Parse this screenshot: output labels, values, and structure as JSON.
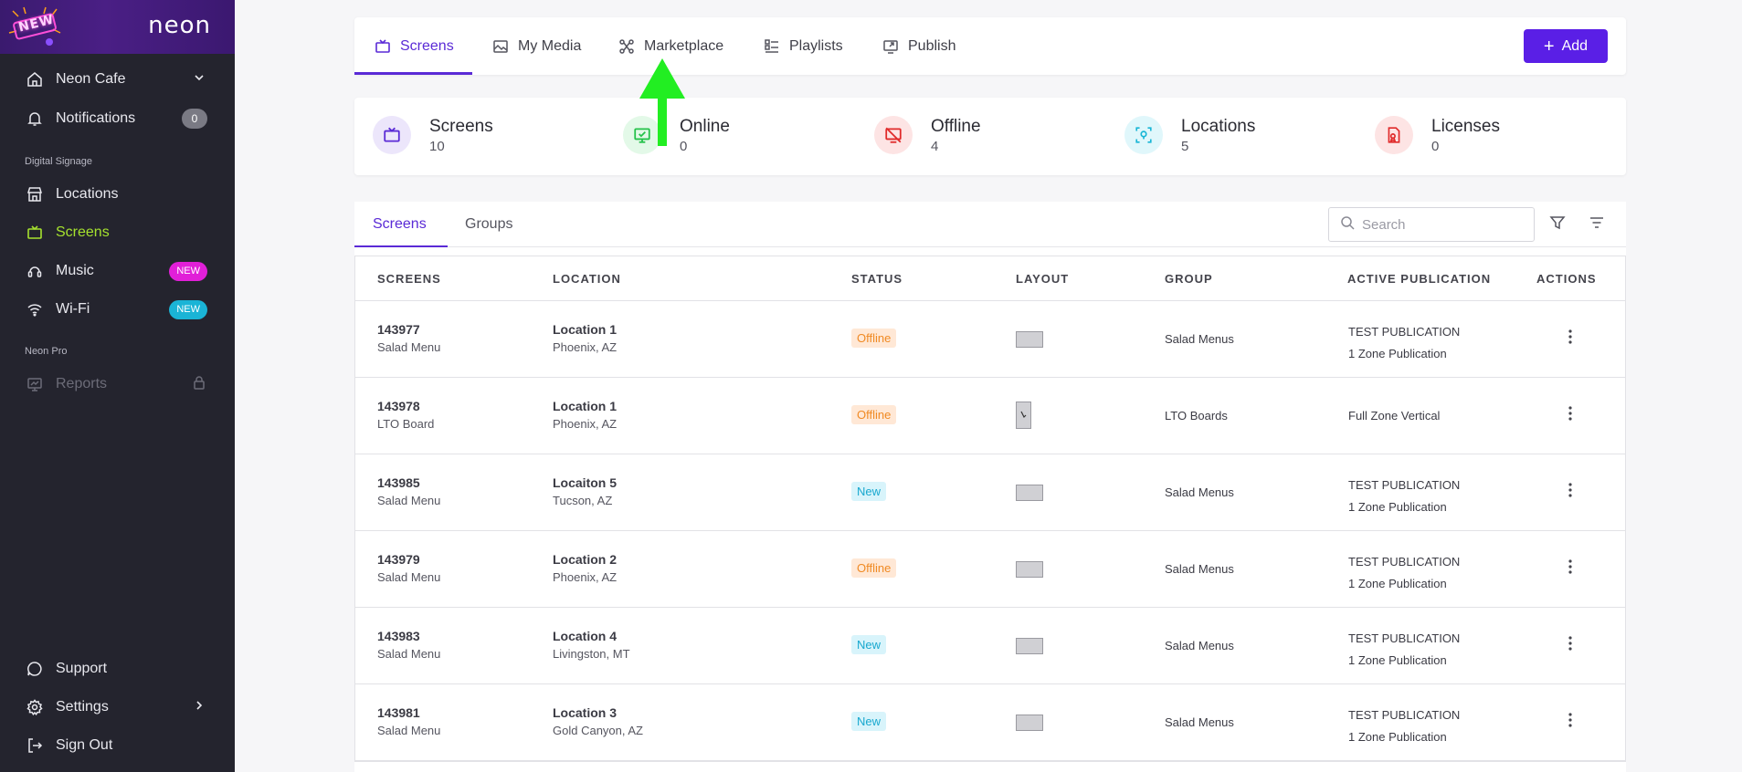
{
  "sidebar": {
    "logo_text": "neon",
    "new_badge": "NEW",
    "account": "Neon Cafe",
    "notifications_label": "Notifications",
    "notifications_count": "0",
    "section_digital": "Digital Signage",
    "items": [
      {
        "label": "Locations",
        "icon": "store-icon"
      },
      {
        "label": "Screens",
        "icon": "tv-icon",
        "active": true
      },
      {
        "label": "Music",
        "icon": "music-icon",
        "badge": "NEW"
      },
      {
        "label": "Wi-Fi",
        "icon": "wifi-icon",
        "badge": "NEW"
      }
    ],
    "section_pro": "Neon Pro",
    "reports_label": "Reports",
    "support_label": "Support",
    "settings_label": "Settings",
    "signout_label": "Sign Out"
  },
  "topnav": {
    "tabs": [
      {
        "label": "Screens"
      },
      {
        "label": "My Media"
      },
      {
        "label": "Marketplace"
      },
      {
        "label": "Playlists"
      },
      {
        "label": "Publish"
      }
    ],
    "add_label": "Add"
  },
  "stats": [
    {
      "label": "Screens",
      "value": "10"
    },
    {
      "label": "Online",
      "value": "0"
    },
    {
      "label": "Offline",
      "value": "4"
    },
    {
      "label": "Locations",
      "value": "5"
    },
    {
      "label": "Licenses",
      "value": "0"
    }
  ],
  "colors": {
    "accent": "#5a2ad6",
    "add_button": "#5a1fe6",
    "sidebar_active": "#a6e22e",
    "music_badge": "#e11fd8",
    "wifi_badge": "#1ab4d6",
    "annotation_arrow": "#22ee22"
  },
  "subtabs": [
    "Screens",
    "Groups"
  ],
  "search": {
    "placeholder": "Search"
  },
  "table": {
    "headers": [
      "SCREENS",
      "LOCATION",
      "STATUS",
      "LAYOUT",
      "GROUP",
      "ACTIVE PUBLICATION",
      "ACTIONS"
    ],
    "rows": [
      {
        "id": "143977",
        "name": "Salad Menu",
        "location": "Location 1",
        "city": "Phoenix, AZ",
        "status": "Offline",
        "layout": "horizontal",
        "group": "Salad Menus",
        "pub1": "TEST PUBLICATION",
        "pub2": "1 Zone Publication"
      },
      {
        "id": "143978",
        "name": "LTO Board",
        "location": "Location 1",
        "city": "Phoenix, AZ",
        "status": "Offline",
        "layout": "vertical",
        "group": "LTO Boards",
        "pub1": "Full Zone Vertical",
        "pub2": ""
      },
      {
        "id": "143985",
        "name": "Salad Menu",
        "location": "Locaiton 5",
        "city": "Tucson, AZ",
        "status": "New",
        "layout": "horizontal",
        "group": "Salad Menus",
        "pub1": "TEST PUBLICATION",
        "pub2": "1 Zone Publication"
      },
      {
        "id": "143979",
        "name": "Salad Menu",
        "location": "Location 2",
        "city": "Phoenix, AZ",
        "status": "Offline",
        "layout": "horizontal",
        "group": "Salad Menus",
        "pub1": "TEST PUBLICATION",
        "pub2": "1 Zone Publication"
      },
      {
        "id": "143983",
        "name": "Salad Menu",
        "location": "Location 4",
        "city": "Livingston, MT",
        "status": "New",
        "layout": "horizontal",
        "group": "Salad Menus",
        "pub1": "TEST PUBLICATION",
        "pub2": "1 Zone Publication"
      },
      {
        "id": "143981",
        "name": "Salad Menu",
        "location": "Location 3",
        "city": "Gold Canyon, AZ",
        "status": "New",
        "layout": "horizontal",
        "group": "Salad Menus",
        "pub1": "TEST PUBLICATION",
        "pub2": "1 Zone Publication"
      }
    ]
  }
}
